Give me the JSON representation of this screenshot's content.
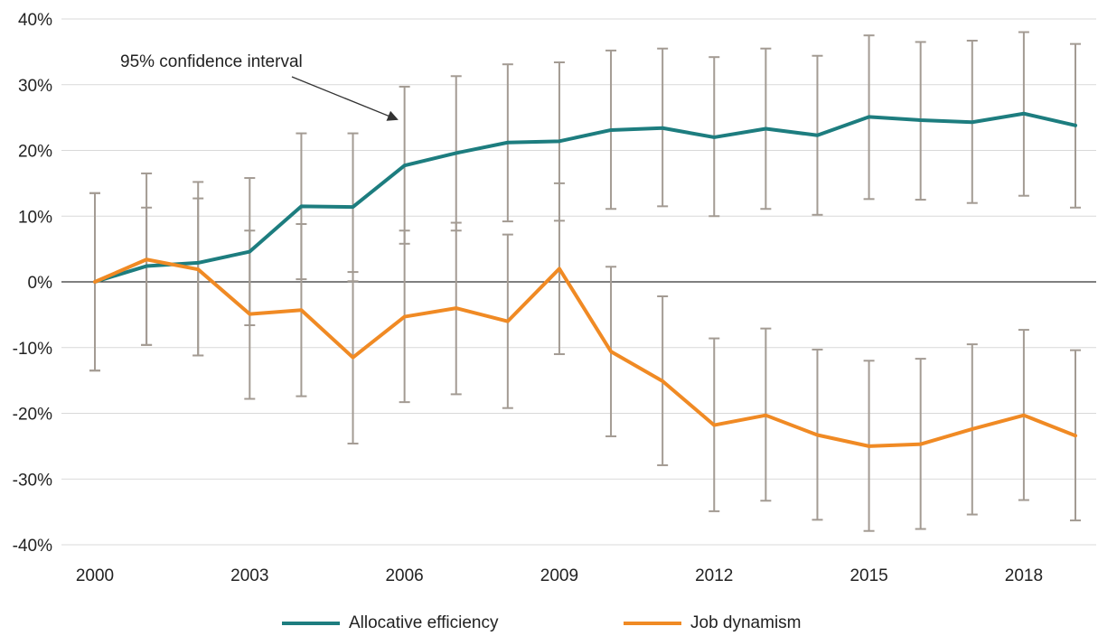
{
  "chart_data": {
    "type": "line",
    "x": [
      2000,
      2001,
      2002,
      2003,
      2004,
      2005,
      2006,
      2007,
      2008,
      2009,
      2010,
      2011,
      2012,
      2013,
      2014,
      2015,
      2016,
      2017,
      2018,
      2019
    ],
    "x_tick_labels": [
      "2000",
      "2003",
      "2006",
      "2009",
      "2012",
      "2015",
      "2018"
    ],
    "x_tick_values": [
      2000,
      2003,
      2006,
      2009,
      2012,
      2015,
      2018
    ],
    "y_tick_labels": [
      "40%",
      "30%",
      "20%",
      "10%",
      "0%",
      "-10%",
      "-20%",
      "-30%",
      "-40%"
    ],
    "y_tick_values": [
      40,
      30,
      20,
      10,
      0,
      -10,
      -20,
      -30,
      -40
    ],
    "ylim": [
      -40,
      40
    ],
    "y_unit": "%",
    "grid": true,
    "legend_position": "bottom",
    "error_bar_color": "#a39b93",
    "series": [
      {
        "name": "Allocative efficiency",
        "color": "#1d7d7f",
        "values": [
          0,
          2.4,
          2.9,
          4.6,
          11.5,
          11.4,
          17.7,
          19.6,
          21.2,
          21.4,
          23.1,
          23.4,
          22.0,
          23.3,
          22.3,
          25.1,
          24.6,
          24.3,
          25.6,
          23.8
        ],
        "ci_low": [
          -13.5,
          -9.6,
          -11.2,
          -6.6,
          0.4,
          0.1,
          5.8,
          7.8,
          9.2,
          9.3,
          11.1,
          11.5,
          10.0,
          11.1,
          10.2,
          12.6,
          12.5,
          12.0,
          13.1,
          11.3
        ],
        "ci_high": [
          13.5,
          16.5,
          15.2,
          15.8,
          22.6,
          22.6,
          29.7,
          31.3,
          33.1,
          33.4,
          35.2,
          35.5,
          34.2,
          35.5,
          34.4,
          37.5,
          36.5,
          36.7,
          38.0,
          36.2
        ]
      },
      {
        "name": "Job dynamism",
        "color": "#f08a24",
        "values": [
          0,
          3.4,
          1.9,
          -4.9,
          -4.3,
          -11.5,
          -5.3,
          -4.0,
          -6.0,
          2.0,
          -10.6,
          -15.1,
          -21.8,
          -20.3,
          -23.3,
          -25.0,
          -24.7,
          -22.4,
          -20.3,
          -23.4
        ],
        "ci_low": [
          -13.5,
          -9.6,
          -11.2,
          -17.8,
          -17.4,
          -24.6,
          -18.3,
          -17.1,
          -19.2,
          -11.0,
          -23.5,
          -27.9,
          -34.9,
          -33.3,
          -36.2,
          -37.9,
          -37.6,
          -35.4,
          -33.2,
          -36.3
        ],
        "ci_high": [
          13.5,
          11.3,
          12.7,
          7.8,
          8.8,
          1.5,
          7.8,
          9.0,
          7.2,
          15.0,
          2.3,
          -2.2,
          -8.6,
          -7.1,
          -10.3,
          -12.0,
          -11.7,
          -9.5,
          -7.3,
          -10.4
        ]
      }
    ],
    "annotation": {
      "text": "95% confidence interval",
      "arrow_target": {
        "x": 2006,
        "y": 24.7
      }
    }
  }
}
